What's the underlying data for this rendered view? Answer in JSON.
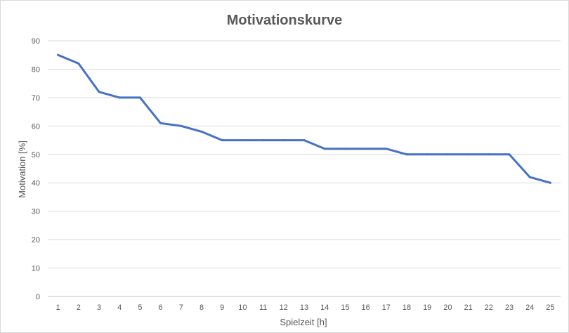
{
  "chart_data": {
    "type": "line",
    "title": "Motivationskurve",
    "xlabel": "Spielzeit [h]",
    "ylabel": "Motivation [%]",
    "x": [
      1,
      2,
      3,
      4,
      5,
      6,
      7,
      8,
      9,
      10,
      11,
      12,
      13,
      14,
      15,
      16,
      17,
      18,
      19,
      20,
      21,
      22,
      23,
      24,
      25
    ],
    "series": [
      {
        "values": [
          85,
          82,
          72,
          70,
          70,
          61,
          60,
          58,
          55,
          55,
          55,
          55,
          55,
          52,
          52,
          52,
          52,
          50,
          50,
          50,
          50,
          50,
          50,
          42,
          40
        ]
      }
    ],
    "ylim": [
      0,
      90
    ],
    "yticks": [
      0,
      10,
      20,
      30,
      40,
      50,
      60,
      70,
      80,
      90
    ],
    "grid": true,
    "legend": "none",
    "colors": {
      "series": "#4472c4"
    }
  }
}
